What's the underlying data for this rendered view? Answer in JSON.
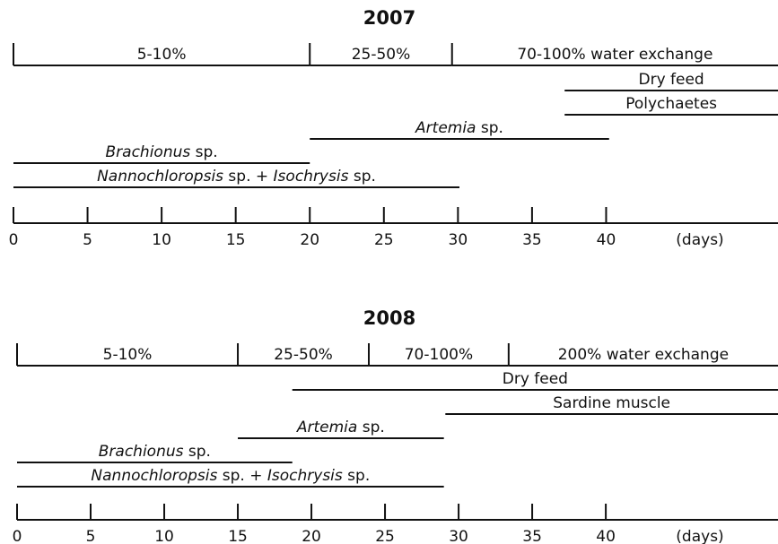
{
  "panels": [
    {
      "title": "2007",
      "xlim": [
        0,
        51.6
      ],
      "xticks": [
        0,
        5,
        10,
        15,
        20,
        25,
        30,
        35,
        40
      ],
      "unit_label": "(days)",
      "phases": [
        {
          "label": "5-10%",
          "start": 0,
          "end": 20
        },
        {
          "label": "25-50%",
          "start": 20,
          "end": 29.6
        },
        {
          "label": "70-100% water exchange",
          "start": 29.6,
          "end": 51.6
        }
      ],
      "feeds": [
        {
          "label": [
            {
              "text": "Dry feed",
              "italic": false
            }
          ],
          "start": 37.2,
          "end": 51.6
        },
        {
          "label": [
            {
              "text": "Polychaetes",
              "italic": false
            }
          ],
          "start": 37.2,
          "end": 51.6
        },
        {
          "label": [
            {
              "text": "Artemia",
              "italic": true
            },
            {
              "text": " sp.",
              "italic": false
            }
          ],
          "start": 20,
          "end": 40.2
        },
        {
          "label": [
            {
              "text": "Brachionus",
              "italic": true
            },
            {
              "text": " sp.",
              "italic": false
            }
          ],
          "start": 0,
          "end": 20
        },
        {
          "label": [
            {
              "text": "Nannochloropsis",
              "italic": true
            },
            {
              "text": " sp. + ",
              "italic": false
            },
            {
              "text": "Isochrysis",
              "italic": true
            },
            {
              "text": " sp.",
              "italic": false
            }
          ],
          "start": 0,
          "end": 30.1
        }
      ]
    },
    {
      "title": "2008",
      "xlim": [
        0,
        51.7
      ],
      "xticks": [
        0,
        5,
        10,
        15,
        20,
        25,
        30,
        35,
        40
      ],
      "unit_label": "(days)",
      "phases": [
        {
          "label": "5-10%",
          "start": 0,
          "end": 15
        },
        {
          "label": "25-50%",
          "start": 15,
          "end": 23.9
        },
        {
          "label": "70-100%",
          "start": 23.9,
          "end": 33.4
        },
        {
          "label": "200% water exchange",
          "start": 33.4,
          "end": 51.7
        }
      ],
      "feeds": [
        {
          "label": [
            {
              "text": "Dry feed",
              "italic": false
            }
          ],
          "start": 18.7,
          "end": 51.7
        },
        {
          "label": [
            {
              "text": "Sardine muscle",
              "italic": false
            }
          ],
          "start": 29.1,
          "end": 51.7
        },
        {
          "label": [
            {
              "text": "Artemia",
              "italic": true
            },
            {
              "text": " sp.",
              "italic": false
            }
          ],
          "start": 15,
          "end": 29
        },
        {
          "label": [
            {
              "text": "Brachionus",
              "italic": true
            },
            {
              "text": " sp.",
              "italic": false
            }
          ],
          "start": 0,
          "end": 18.7
        },
        {
          "label": [
            {
              "text": "Nannochloropsis",
              "italic": true
            },
            {
              "text": " sp. + ",
              "italic": false
            },
            {
              "text": "Isochrysis",
              "italic": true
            },
            {
              "text": " sp.",
              "italic": false
            }
          ],
          "start": 0,
          "end": 29
        }
      ]
    }
  ]
}
